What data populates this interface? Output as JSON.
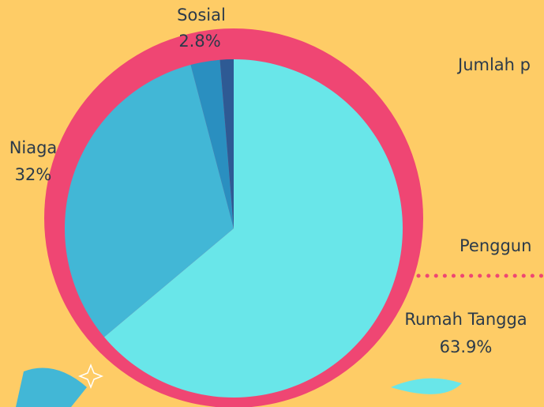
{
  "chart_data": {
    "type": "pie",
    "categories": [
      "Rumah Tangga",
      "Niaga",
      "Sosial",
      null
    ],
    "values": [
      63.9,
      32,
      2.8,
      1.3
    ],
    "value_labels": [
      "63.9%",
      "32%",
      "2.8%",
      null
    ],
    "colors": [
      "#69e6e9",
      "#42b7d6",
      "#2a8fc0",
      "#2e5a94"
    ],
    "annotations": [
      "Jumlah p",
      "Penggun"
    ]
  }
}
